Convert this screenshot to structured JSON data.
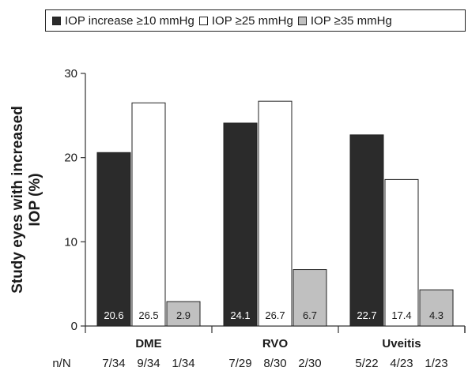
{
  "chart_data": {
    "type": "bar",
    "categories": [
      "DME",
      "RVO",
      "Uveitis"
    ],
    "series": [
      {
        "name": "IOP increase ≥10 mmHg",
        "values": [
          20.6,
          24.1,
          22.7
        ],
        "value_labels": [
          "20.6",
          "24.1",
          "22.7"
        ],
        "counts": [
          "7/34",
          "7/29",
          "5/22"
        ],
        "color": "#2b2b2b",
        "label_color": "#ffffff"
      },
      {
        "name": "IOP ≥25 mmHg",
        "values": [
          26.5,
          26.7,
          17.4
        ],
        "value_labels": [
          "26.5",
          "26.7",
          "17.4"
        ],
        "counts": [
          "9/34",
          "8/30",
          "4/23"
        ],
        "color": "#ffffff",
        "label_color": "#1a1a1a"
      },
      {
        "name": "IOP ≥35 mmHg",
        "values": [
          2.9,
          6.7,
          4.3
        ],
        "value_labels": [
          "2.9",
          "6.7",
          "4.3"
        ],
        "counts": [
          "1/34",
          "2/30",
          "1/23"
        ],
        "color": "#c0c0c0",
        "label_color": "#1a1a1a"
      }
    ],
    "ylabel_line1": "Study eyes with increased",
    "ylabel_line2": "IOP (%)",
    "ylim": [
      0,
      30
    ],
    "yticks": [
      "0",
      "10",
      "20",
      "30"
    ],
    "n_row_label": "n/N",
    "legend_position": "top",
    "grid": false
  }
}
